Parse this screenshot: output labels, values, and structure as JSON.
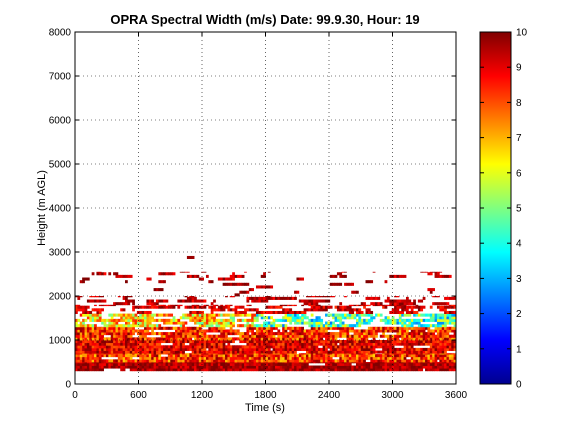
{
  "chart_data": {
    "type": "heatmap",
    "title": "OPRA Spectral Width (m/s)  Date: 99.9.30, Hour: 19",
    "xlabel": "Time (s)",
    "ylabel": "Height (m AGL)",
    "xlim": [
      0,
      3600
    ],
    "ylim": [
      0,
      8000
    ],
    "xticks": [
      "0",
      "600",
      "1200",
      "1800",
      "2400",
      "3000",
      "3600"
    ],
    "yticks": [
      "0",
      "1000",
      "2000",
      "3000",
      "4000",
      "5000",
      "6000",
      "7000",
      "8000"
    ],
    "grid": true,
    "colorbar": {
      "clim": [
        0,
        10
      ],
      "ticks": [
        "0",
        "1",
        "2",
        "3",
        "4",
        "5",
        "6",
        "7",
        "8",
        "9",
        "10"
      ],
      "colormap": "jet"
    },
    "bands": [
      {
        "h0": 300,
        "h1": 500,
        "coverage": 0.97,
        "mean": 9.6,
        "spread": 0.8
      },
      {
        "h0": 500,
        "h1": 700,
        "coverage": 0.95,
        "mean": 8.3,
        "spread": 1.6
      },
      {
        "h0": 700,
        "h1": 1000,
        "coverage": 0.92,
        "mean": 9.0,
        "spread": 1.2
      },
      {
        "h0": 1000,
        "h1": 1300,
        "coverage": 0.85,
        "mean": 8.4,
        "spread": 1.6
      },
      {
        "h0": 1300,
        "h1": 1600,
        "coverage": 0.72,
        "mean": 6.6,
        "spread": 2.0
      },
      {
        "h0": 1600,
        "h1": 1800,
        "coverage": 0.45,
        "mean": 9.2,
        "spread": 0.9
      },
      {
        "h0": 1800,
        "h1": 2000,
        "coverage": 0.35,
        "mean": 9.4,
        "spread": 0.8
      },
      {
        "h0": 2000,
        "h1": 2300,
        "coverage": 0.05,
        "mean": 9.6,
        "spread": 0.6
      },
      {
        "h0": 2300,
        "h1": 2550,
        "coverage": 0.14,
        "mean": 9.4,
        "spread": 0.8
      },
      {
        "h0": 2850,
        "h1": 2950,
        "coverage": 0.004,
        "mean": 9.8,
        "spread": 0.2
      }
    ]
  }
}
